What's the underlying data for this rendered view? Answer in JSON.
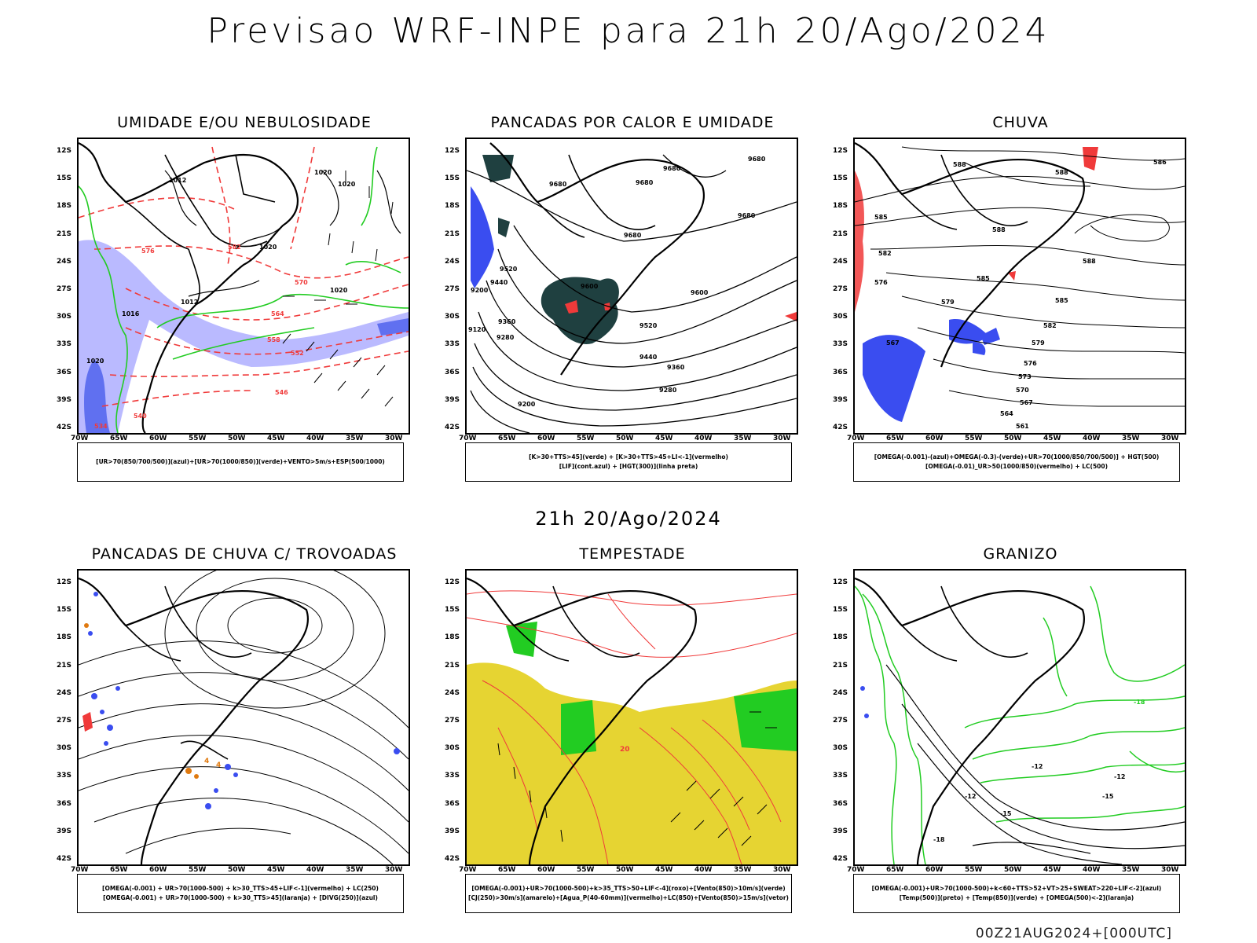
{
  "title": "Previsao WRF-INPE  para 21h 20/Ago/2024",
  "subtitle": "21h 20/Ago/2024",
  "footer": "00Z21AUG2024+[000UTC]",
  "lat_labels": [
    "12S",
    "15S",
    "18S",
    "21S",
    "24S",
    "27S",
    "30S",
    "33S",
    "36S",
    "39S",
    "42S"
  ],
  "lon_labels": [
    "70W",
    "65W",
    "60W",
    "55W",
    "50W",
    "45W",
    "40W",
    "35W",
    "30W"
  ],
  "panels": [
    {
      "title": "UMIDADE E/OU NEBULOSIDADE",
      "legend": [
        "[UR>70(850/700/500)](azul)+[UR>70(1000/850)](verde)+VENTO>5m/s+ESP(500/1000)"
      ],
      "labels": [
        "1012",
        "1020",
        "1020",
        "1012",
        "1020",
        "1016",
        "1020",
        "1020",
        "576",
        "570",
        "564",
        "558",
        "552",
        "546",
        "540",
        "534",
        "582"
      ]
    },
    {
      "title": "PANCADAS POR CALOR E UMIDADE",
      "legend": [
        "[K>30+TTS>45](verde) + [K>30+TTS>45+LI<-1](vermelho)",
        "[LIF](cont.azul) + [HGT(300)](linha preta)"
      ],
      "labels": [
        "9680",
        "9680",
        "9680",
        "9680",
        "9680",
        "9680",
        "9600",
        "9600",
        "9520",
        "9520",
        "9440",
        "9440",
        "9360",
        "9360",
        "9280",
        "9280",
        "9200",
        "9200",
        "9120"
      ]
    },
    {
      "title": "CHUVA",
      "legend": [
        "[OMEGA(-0.001)-(azul)+OMEGA(-0.3)-(verde)+UR>70(1000/850/700/500)] + HGT(500)",
        "[OMEGA(-0.01)_UR>50(1000/850)(vermelho) + LC(500)"
      ],
      "labels": [
        "588",
        "588",
        "586",
        "585",
        "588",
        "582",
        "585",
        "579",
        "576",
        "588",
        "585",
        "582",
        "579",
        "576",
        "573",
        "570",
        "567",
        "564",
        "561",
        "567"
      ]
    },
    {
      "title": "PANCADAS DE CHUVA C/ TROVOADAS",
      "legend": [
        "[OMEGA(-0.001) + UR>70(1000-500) + k>30_TTS>45+LIF<-1](vermelho) + LC(250)",
        "[OMEGA(-0.001) + UR>70(1000-500) + k>30_TTS>45](laranja) + [DIVG(250)](azul)"
      ],
      "labels": [
        "4",
        "4"
      ]
    },
    {
      "title": "TEMPESTADE",
      "legend": [
        "[OMEGA(-0.001)+UR>70(1000-500)+k>35_TTS>50+LIF<-4](roxo)+[Vento(850)>10m/s](verde)",
        "[CJ(250)>30m/s](amarelo)+[Agua_P(40-60mm)](vermelho)+LC(850)+[Vento(850)>15m/s](vetor)"
      ],
      "labels": [
        "20"
      ]
    },
    {
      "title": "GRANIZO",
      "legend": [
        "[OMEGA(-0.001)+UR>70(1000-500)+k<60+TTS>52+VT>25+SWEAT>220+LIF<-2](azul)",
        "[Temp(500)](preto) + [Temp(850)](verde) + [OMEGA(500)<-2](laranja)"
      ],
      "labels": [
        "-12",
        "-12",
        "-15",
        "-15",
        "-18",
        "-12",
        "-18"
      ]
    }
  ],
  "colors": {
    "blue": "#3a4df0",
    "green": "#22cc22",
    "red": "#f03a3a",
    "dark_teal": "#1f4040",
    "lavender": "#b3b3ff",
    "yellow": "#e6d432",
    "orange": "#e07a10",
    "purple": "#8080f0"
  }
}
